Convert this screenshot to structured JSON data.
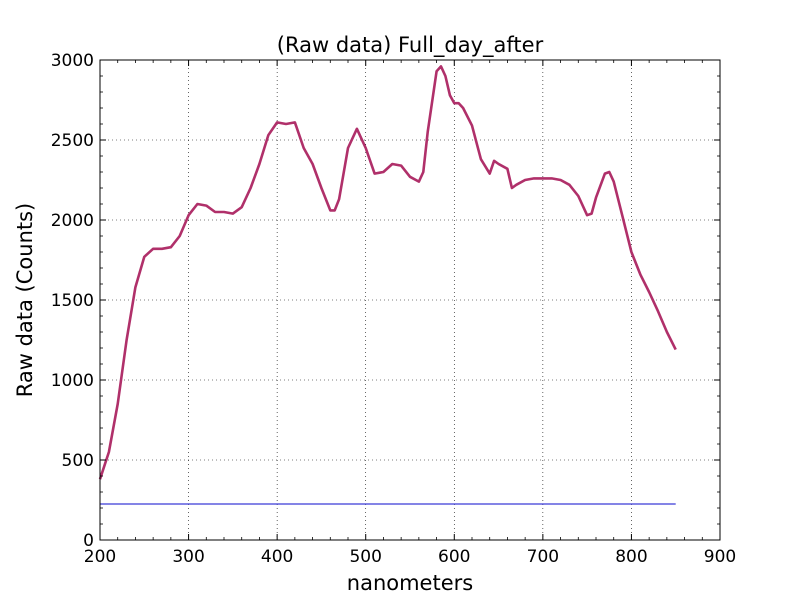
{
  "chart_data": {
    "type": "line",
    "title": "(Raw data) Full_day_after",
    "xlabel": "nanometers",
    "ylabel": "Raw data (Counts)",
    "xlim": [
      200,
      900
    ],
    "ylim": [
      0,
      3000
    ],
    "xticks": [
      200,
      300,
      400,
      500,
      600,
      700,
      800,
      900
    ],
    "yticks": [
      0,
      500,
      1000,
      1500,
      2000,
      2500,
      3000
    ],
    "xtick_labels": [
      "200",
      "300",
      "400",
      "500",
      "600",
      "700",
      "800",
      "900"
    ],
    "ytick_labels": [
      "0",
      "500",
      "1000",
      "1500",
      "2000",
      "2500",
      "3000"
    ],
    "grid": true,
    "series": [
      {
        "color": "#b0306a",
        "x": [
          200,
          210,
          220,
          230,
          240,
          250,
          260,
          270,
          280,
          290,
          300,
          310,
          320,
          330,
          340,
          350,
          360,
          370,
          380,
          390,
          400,
          410,
          420,
          430,
          440,
          450,
          460,
          465,
          470,
          480,
          490,
          500,
          510,
          520,
          530,
          540,
          550,
          560,
          565,
          570,
          580,
          585,
          590,
          595,
          600,
          605,
          610,
          620,
          630,
          640,
          645,
          650,
          660,
          665,
          670,
          680,
          690,
          700,
          710,
          720,
          730,
          740,
          750,
          755,
          760,
          770,
          775,
          780,
          790,
          800,
          810,
          820,
          830,
          840,
          850
        ],
        "y": [
          380,
          550,
          850,
          1250,
          1580,
          1770,
          1820,
          1820,
          1830,
          1900,
          2030,
          2100,
          2090,
          2050,
          2050,
          2040,
          2080,
          2200,
          2350,
          2530,
          2610,
          2600,
          2610,
          2450,
          2350,
          2200,
          2060,
          2060,
          2130,
          2450,
          2570,
          2450,
          2290,
          2300,
          2350,
          2340,
          2270,
          2240,
          2300,
          2550,
          2930,
          2960,
          2900,
          2780,
          2730,
          2730,
          2700,
          2590,
          2380,
          2290,
          2370,
          2350,
          2320,
          2200,
          2220,
          2250,
          2260,
          2260,
          2260,
          2250,
          2220,
          2150,
          2030,
          2040,
          2140,
          2290,
          2300,
          2240,
          2020,
          1800,
          1660,
          1550,
          1430,
          1300,
          1190
        ]
      },
      {
        "color": "#3a3ad6",
        "x": [
          200,
          850
        ],
        "y": [
          225,
          225
        ]
      }
    ]
  }
}
